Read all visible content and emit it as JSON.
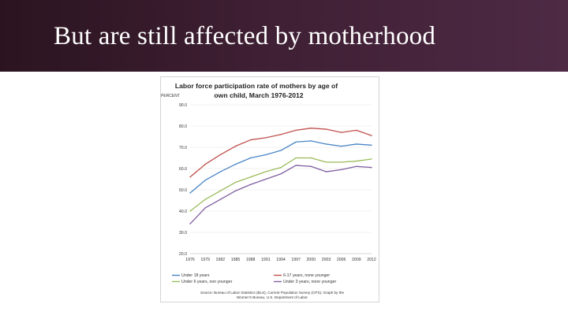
{
  "slide": {
    "title": "But are still affected by motherhood"
  },
  "colors": {
    "title_bar": "#3e1f33",
    "under18": "#4a86c5",
    "age6to17": "#c0504d",
    "under6": "#9bbb59",
    "under3": "#7f5fa0"
  },
  "chart_data": {
    "type": "line",
    "title": "Labor force participation rate of mothers by age of own child, March 1976-2012",
    "title_line1": "Labor force participation rate of mothers by age of",
    "title_line2": "own child, March 1976-2012",
    "ylabel": "PERCENT",
    "ylim": [
      20,
      90
    ],
    "yticks": [
      "90.0",
      "80.0",
      "70.0",
      "60.0",
      "50.0",
      "40.0",
      "30.0",
      "20.0"
    ],
    "xticks": [
      "1976",
      "1979",
      "1982",
      "1985",
      "1988",
      "1991",
      "1994",
      "1997",
      "2000",
      "2003",
      "2006",
      "2009",
      "2012"
    ],
    "grid": true,
    "legend_position": "bottom",
    "x": [
      1976,
      1979,
      1982,
      1985,
      1988,
      1991,
      1994,
      1997,
      2000,
      2003,
      2006,
      2009,
      2012
    ],
    "series": [
      {
        "name": "Under 18 years",
        "color": "#4a86c5",
        "values": [
          48.5,
          54.5,
          58.5,
          62,
          65,
          66.5,
          68.5,
          72.5,
          73,
          71.5,
          70.5,
          71.5,
          71
        ]
      },
      {
        "name": "6-17 years, none younger",
        "color": "#c0504d",
        "values": [
          56,
          62,
          66.5,
          70.5,
          73.5,
          74.5,
          76,
          78,
          79,
          78.5,
          77,
          78,
          75.5
        ]
      },
      {
        "name": "Under 6 years, non younger",
        "color": "#9bbb59",
        "values": [
          40,
          45.5,
          49.5,
          53.5,
          56,
          58.5,
          60.5,
          65,
          65,
          63,
          63,
          63.5,
          64.5
        ]
      },
      {
        "name": "Under 3 years, none younger",
        "color": "#7f5fa0",
        "values": [
          34,
          41.5,
          45.5,
          49.5,
          52.5,
          55,
          57.5,
          61.5,
          61,
          58.5,
          59.5,
          61,
          60.5
        ]
      }
    ],
    "source_line1": "Source: Bureau of Labor Statistics (BLS), Current Population Survey (CPS); Graph by the",
    "source_line2": "Women's Bureau, U.S. Department of Labor"
  }
}
